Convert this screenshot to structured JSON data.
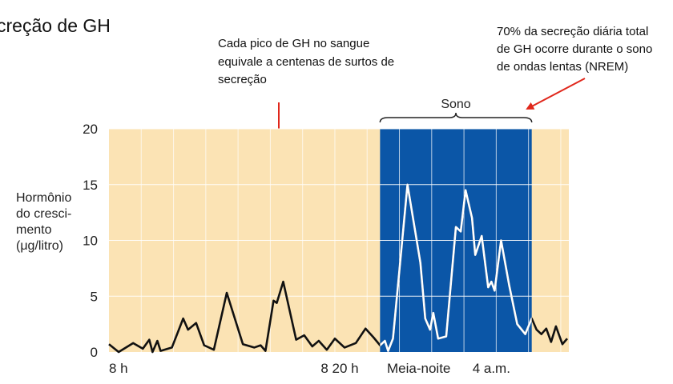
{
  "title": "creção de GH",
  "annotations": {
    "peak_note": [
      "Cada pico de GH no sangue",
      "equivale a centenas de surtos de",
      "secreção"
    ],
    "sleep_note": [
      "70% da secreção diária total",
      "de GH ocorre durante o sono",
      "de ondas lentas (NREM)"
    ]
  },
  "sleep_label": "Sono",
  "colors": {
    "day_background": "#fbe3b4",
    "sleep_background": "#0b56a7",
    "arrow": "#e0271b",
    "line_day": "#111111",
    "line_sleep": "#ffffff"
  },
  "chart_data": {
    "type": "line",
    "ylabel": [
      "Hormônio",
      "do cresci-",
      "mento",
      "(μg/litro)"
    ],
    "yticks": [
      0,
      5,
      10,
      15,
      20
    ],
    "ylim": [
      0,
      20
    ],
    "xlim": [
      0,
      28.5
    ],
    "xtick_labels": [
      {
        "x": 0,
        "label": "8 h"
      },
      {
        "x": 14.3,
        "label": "8 20 h"
      },
      {
        "x": 19.2,
        "label": "Meia-noite"
      },
      {
        "x": 23.7,
        "label": "4 a.m."
      }
    ],
    "sleep_interval": [
      16.8,
      26.2
    ],
    "series": [
      {
        "values": [
          [
            0,
            0.7
          ],
          [
            0.6,
            0
          ],
          [
            1.5,
            0.8
          ],
          [
            2.1,
            0.3
          ],
          [
            2.5,
            1.1
          ],
          [
            2.7,
            0
          ],
          [
            3.0,
            1.0
          ],
          [
            3.2,
            0.1
          ],
          [
            3.9,
            0.4
          ],
          [
            4.6,
            3.0
          ],
          [
            4.9,
            2.0
          ],
          [
            5.4,
            2.6
          ],
          [
            5.9,
            0.6
          ],
          [
            6.5,
            0.2
          ],
          [
            7.3,
            5.3
          ],
          [
            8.3,
            0.7
          ],
          [
            9.0,
            0.4
          ],
          [
            9.4,
            0.6
          ],
          [
            9.7,
            0.1
          ],
          [
            10.2,
            4.6
          ],
          [
            10.4,
            4.4
          ],
          [
            10.8,
            6.3
          ],
          [
            11.6,
            1.1
          ],
          [
            12.1,
            1.5
          ],
          [
            12.6,
            0.5
          ],
          [
            13.0,
            1.0
          ],
          [
            13.5,
            0.2
          ],
          [
            14.0,
            1.2
          ],
          [
            14.6,
            0.4
          ],
          [
            15.3,
            0.8
          ],
          [
            15.9,
            2.1
          ],
          [
            16.4,
            1.3
          ],
          [
            16.8,
            0.6
          ],
          [
            17.1,
            1.0
          ],
          [
            17.3,
            0.1
          ],
          [
            17.6,
            1.2
          ],
          [
            18.5,
            15.0
          ],
          [
            19.3,
            8.0
          ],
          [
            19.6,
            3.0
          ],
          [
            19.9,
            2.0
          ],
          [
            20.1,
            3.5
          ],
          [
            20.4,
            1.2
          ],
          [
            20.9,
            1.4
          ],
          [
            21.5,
            11.2
          ],
          [
            21.8,
            10.8
          ],
          [
            22.1,
            14.5
          ],
          [
            22.5,
            12.0
          ],
          [
            22.7,
            8.7
          ],
          [
            23.1,
            10.4
          ],
          [
            23.5,
            5.8
          ],
          [
            23.7,
            6.3
          ],
          [
            23.9,
            5.5
          ],
          [
            24.3,
            10.0
          ],
          [
            24.8,
            6.0
          ],
          [
            25.3,
            2.5
          ],
          [
            25.8,
            1.6
          ],
          [
            26.2,
            3.0
          ],
          [
            26.5,
            2.0
          ],
          [
            26.8,
            1.6
          ],
          [
            27.1,
            2.1
          ],
          [
            27.4,
            0.9
          ],
          [
            27.7,
            2.3
          ],
          [
            28.1,
            0.7
          ],
          [
            28.4,
            1.2
          ]
        ]
      }
    ]
  }
}
